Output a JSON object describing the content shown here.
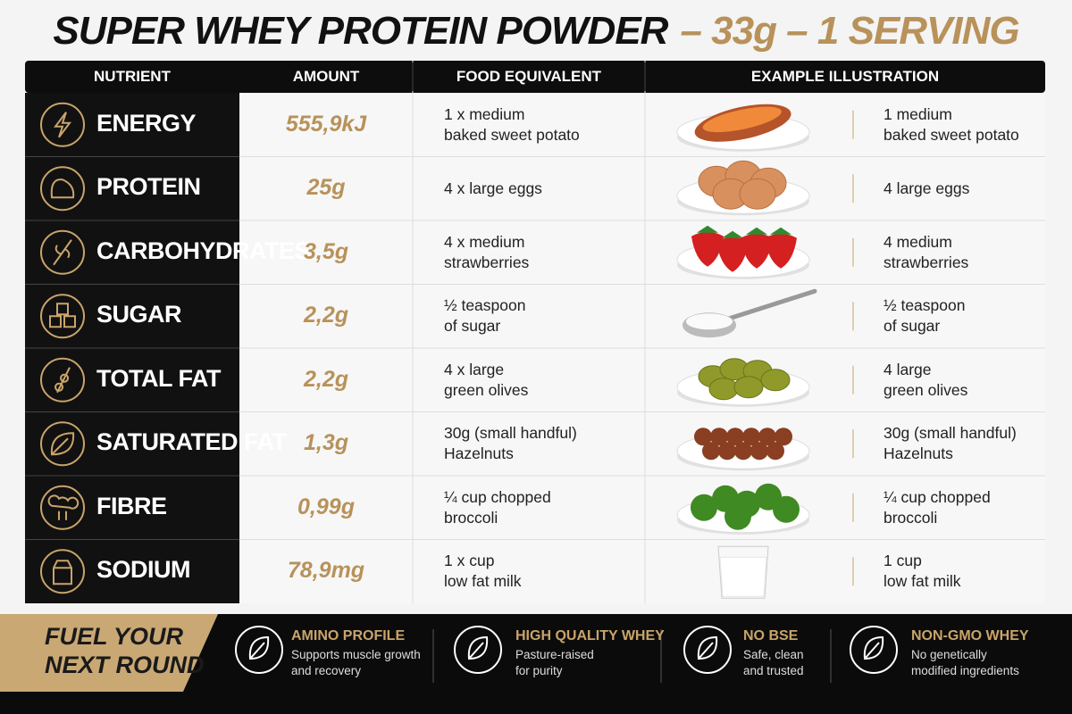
{
  "header": {
    "title": "SUPER WHEY PROTEIN POWDER",
    "title_suffix": "– 33g – 1 SERVING"
  },
  "table": {
    "columns": [
      "NUTRIENT",
      "AMOUNT",
      "FOOD EQUIVALENT",
      "EXAMPLE ILLUSTRATION"
    ],
    "rows": [
      {
        "nutrient": "ENERGY",
        "amount": "555,9kJ",
        "food_equivalent": [
          "1 x medium",
          "baked sweet potato"
        ],
        "illustration_caption": [
          "1 medium",
          "baked sweet potato"
        ]
      },
      {
        "nutrient": "PROTEIN",
        "amount": "25g",
        "food_equivalent": [
          "4 x large eggs"
        ],
        "illustration_caption": [
          "4 large eggs"
        ]
      },
      {
        "nutrient": "CARBOHYDRATES",
        "amount": "3,5g",
        "food_equivalent": [
          "4 x medium",
          "strawberries"
        ],
        "illustration_caption": [
          "4 medium",
          "strawberries"
        ]
      },
      {
        "nutrient": "SUGAR",
        "amount": "2,2g",
        "food_equivalent": [
          "½ teaspoon",
          "of sugar"
        ],
        "illustration_caption": [
          "½ teaspoon",
          "of sugar"
        ]
      },
      {
        "nutrient": "TOTAL FAT",
        "amount": "2,2g",
        "food_equivalent": [
          "4 x large",
          "green olives"
        ],
        "illustration_caption": [
          "4 large",
          "green olives"
        ]
      },
      {
        "nutrient": "SATURATED FAT",
        "amount": "1,3g",
        "food_equivalent": [
          "30g (small handful)",
          "Hazelnuts"
        ],
        "illustration_caption": [
          "30g (small handful)",
          "Hazelnuts"
        ]
      },
      {
        "nutrient": "FIBRE",
        "amount": "0,99g",
        "food_equivalent": [
          "¼ cup chopped",
          "broccoli"
        ],
        "illustration_caption": [
          "¼ cup chopped",
          "broccoli"
        ]
      },
      {
        "nutrient": "SODIUM",
        "amount": "78,9mg",
        "food_equivalent": [
          "1 x cup",
          "low fat milk"
        ],
        "illustration_caption": [
          "1 cup",
          "low fat milk"
        ]
      }
    ]
  },
  "footer": {
    "slogan": [
      "FUEL YOUR",
      "NEXT ROUND"
    ],
    "features": [
      {
        "title": "AMINO PROFILE",
        "description": [
          "Supports muscle growth",
          "and recovery"
        ]
      },
      {
        "title": "HIGH QUALITY WHEY",
        "description": [
          "Pasture-raised",
          "for purity"
        ]
      },
      {
        "title": "NO BSE",
        "description": [
          "Safe, clean",
          "and trusted"
        ]
      },
      {
        "title": "NON-GMO WHEY",
        "description": [
          "No genetically",
          "modified ingredients"
        ]
      }
    ]
  }
}
